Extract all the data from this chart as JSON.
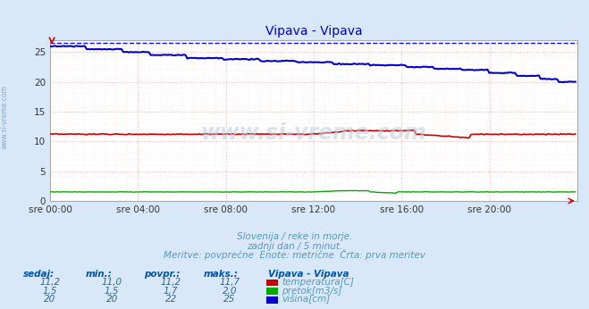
{
  "title": "Vipava - Vipava",
  "bg_color": "#d8e8f8",
  "plot_bg_color": "#ffffff",
  "grid_color_major": "#ffaaaa",
  "grid_color_minor": "#ffdddd",
  "subtitle_lines": [
    "Slovenija / reke in morje.",
    "zadnji dan / 5 minut.",
    "Meritve: povprečne  Enote: metrične  Črta: prva meritev"
  ],
  "xlabel_ticks": [
    "sre 00:00",
    "sre 04:00",
    "sre 08:00",
    "sre 12:00",
    "sre 16:00",
    "sre 20:00"
  ],
  "ylabel_ticks": [
    0,
    5,
    10,
    15,
    20,
    25
  ],
  "ylim": [
    0,
    27
  ],
  "xlim": [
    0,
    288
  ],
  "watermark": "www.si-vreme.com",
  "legend_title": "Vipava - Vipava",
  "legend_items": [
    {
      "label": "temperatura[C]",
      "color": "#cc0000"
    },
    {
      "label": "pretok[m3/s]",
      "color": "#00aa00"
    },
    {
      "label": "višina[cm]",
      "color": "#0000cc"
    }
  ],
  "table_headers": [
    "sedaj:",
    "min.:",
    "povpr.:",
    "maks.:"
  ],
  "table_rows": [
    [
      "11,2",
      "11,0",
      "11,2",
      "11,7"
    ],
    [
      "1,5",
      "1,5",
      "1,7",
      "2,0"
    ],
    [
      "20",
      "20",
      "22",
      "25"
    ]
  ],
  "temp_color": "#cc0000",
  "flow_color": "#00aa00",
  "height_color": "#0000cc",
  "dashed_line_color": "#0000ff",
  "title_color": "#0000cc",
  "text_color": "#5599bb",
  "table_header_color": "#0055aa",
  "table_value_color": "#336688",
  "n_points": 288,
  "dashed_y": 26.5
}
